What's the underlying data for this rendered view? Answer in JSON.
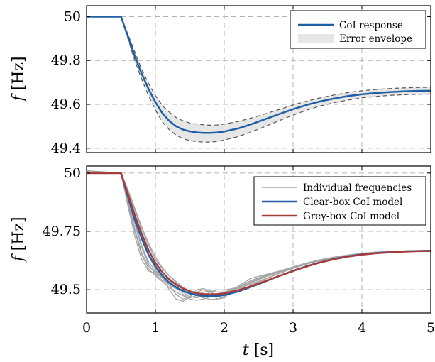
{
  "chart_data": [
    {
      "type": "line",
      "panel": "top",
      "xlim": [
        0,
        5
      ],
      "ylim": [
        49.38,
        50.05
      ],
      "xticks": [
        0,
        1,
        2,
        3,
        4,
        5
      ],
      "yticks": [
        49.4,
        49.6,
        49.8,
        50
      ],
      "ytick_labels": [
        "49.4",
        "49.6",
        "49.8",
        "50"
      ],
      "ylabel_var": "f",
      "ylabel_unit": "[Hz]",
      "grid": true,
      "legend": "top-right",
      "series": [
        {
          "name": "CoI response",
          "color": "#1f5fa6",
          "x": [
            0,
            0.5,
            0.6,
            0.7,
            0.8,
            0.9,
            1.0,
            1.1,
            1.2,
            1.3,
            1.4,
            1.5,
            1.6,
            1.7,
            1.8,
            1.9,
            2.0,
            2.2,
            2.4,
            2.6,
            2.8,
            3.0,
            3.2,
            3.4,
            3.6,
            3.8,
            4.0,
            4.2,
            4.4,
            4.6,
            4.8,
            5.0
          ],
          "y": [
            50.0,
            50.0,
            49.91,
            49.82,
            49.74,
            49.67,
            49.61,
            49.56,
            49.525,
            49.5,
            49.485,
            49.477,
            49.472,
            49.47,
            49.47,
            49.472,
            49.476,
            49.49,
            49.51,
            49.533,
            49.556,
            49.578,
            49.598,
            49.614,
            49.627,
            49.638,
            49.646,
            49.652,
            49.656,
            49.659,
            49.661,
            49.662
          ]
        },
        {
          "name": "Error envelope",
          "color": "#e6e6e6",
          "x": [
            0.5,
            0.6,
            0.7,
            0.8,
            0.9,
            1.0,
            1.1,
            1.2,
            1.3,
            1.4,
            1.5,
            1.6,
            1.7,
            1.8,
            1.9,
            2.0,
            2.2,
            2.4,
            2.6,
            2.8,
            3.0,
            3.2,
            3.4,
            3.6,
            3.8,
            4.0,
            4.2,
            4.4,
            4.6,
            4.8,
            5.0
          ],
          "upper": [
            50.0,
            49.92,
            49.84,
            49.76,
            49.695,
            49.64,
            49.595,
            49.565,
            49.54,
            49.525,
            49.515,
            49.51,
            49.507,
            49.505,
            49.506,
            49.51,
            49.522,
            49.538,
            49.557,
            49.577,
            49.597,
            49.615,
            49.63,
            49.643,
            49.654,
            49.662,
            49.668,
            49.672,
            49.675,
            49.677,
            49.678
          ],
          "lower": [
            50.0,
            49.9,
            49.8,
            49.715,
            49.64,
            49.575,
            49.52,
            49.485,
            49.46,
            49.443,
            49.435,
            49.43,
            49.428,
            49.428,
            49.431,
            49.437,
            49.453,
            49.475,
            49.5,
            49.526,
            49.551,
            49.574,
            49.593,
            49.608,
            49.62,
            49.63,
            49.636,
            49.641,
            49.644,
            49.646,
            49.647
          ]
        }
      ]
    },
    {
      "type": "line",
      "panel": "bottom",
      "xlim": [
        0,
        5
      ],
      "ylim": [
        49.4,
        50.03
      ],
      "xticks": [
        0,
        1,
        2,
        3,
        4,
        5
      ],
      "xtick_labels": [
        "0",
        "1",
        "2",
        "3",
        "4",
        "5"
      ],
      "yticks": [
        49.5,
        49.75,
        50
      ],
      "ytick_labels": [
        "49.5",
        "49.75",
        "50"
      ],
      "ylabel_var": "f",
      "ylabel_unit": "[Hz]",
      "xlabel_var": "t",
      "xlabel_unit": "[s]",
      "grid": true,
      "legend": "top-right",
      "individual_x": [
        0,
        0.5,
        0.6,
        0.7,
        0.8,
        0.9,
        1.0,
        1.1,
        1.2,
        1.3,
        1.4,
        1.5,
        1.6,
        1.7,
        1.8,
        1.9,
        2.0,
        2.2,
        2.4,
        2.6,
        2.8,
        3.0,
        3.2,
        3.4,
        3.6,
        3.8,
        4.0,
        4.2,
        4.4,
        4.6,
        4.8,
        5.0
      ],
      "individual_series": [
        [
          50.01,
          50.0,
          49.92,
          49.84,
          49.76,
          49.69,
          49.63,
          49.59,
          49.56,
          49.535,
          49.51,
          49.495,
          49.485,
          49.482,
          49.48,
          49.483,
          49.488,
          49.505,
          49.525,
          49.548,
          49.57,
          49.592,
          49.61,
          49.626,
          49.638,
          49.648,
          49.655,
          49.66,
          49.663,
          49.665,
          49.666,
          49.667
        ],
        [
          50.005,
          50.0,
          49.9,
          49.79,
          49.69,
          49.62,
          49.58,
          49.56,
          49.54,
          49.51,
          49.48,
          49.465,
          49.475,
          49.49,
          49.495,
          49.49,
          49.49,
          49.505,
          49.53,
          49.555,
          49.575,
          49.594,
          49.612,
          49.627,
          49.638,
          49.647,
          49.655,
          49.66,
          49.664,
          49.666,
          49.667,
          49.668
        ],
        [
          50.0,
          50.0,
          49.88,
          49.76,
          49.66,
          49.6,
          49.575,
          49.555,
          49.52,
          49.48,
          49.46,
          49.47,
          49.49,
          49.5,
          49.49,
          49.475,
          49.48,
          49.51,
          49.54,
          49.56,
          49.578,
          49.596,
          49.614,
          49.628,
          49.64,
          49.648,
          49.656,
          49.661,
          49.664,
          49.666,
          49.667,
          49.668
        ],
        [
          50.0,
          50.0,
          49.86,
          49.73,
          49.63,
          49.58,
          49.57,
          49.55,
          49.5,
          49.46,
          49.45,
          49.47,
          49.5,
          49.505,
          49.49,
          49.46,
          49.465,
          49.515,
          49.55,
          49.565,
          49.58,
          49.598,
          49.615,
          49.629,
          49.64,
          49.649,
          49.656,
          49.661,
          49.664,
          49.666,
          49.667,
          49.668
        ],
        [
          50.01,
          50.0,
          49.93,
          49.85,
          49.77,
          49.7,
          49.64,
          49.595,
          49.56,
          49.53,
          49.505,
          49.49,
          49.48,
          49.478,
          49.476,
          49.475,
          49.478,
          49.495,
          49.52,
          49.545,
          49.57,
          49.592,
          49.61,
          49.625,
          49.637,
          49.647,
          49.654,
          49.659,
          49.663,
          49.665,
          49.666,
          49.667
        ],
        [
          50.0,
          50.0,
          49.89,
          49.78,
          49.68,
          49.61,
          49.565,
          49.54,
          49.53,
          49.515,
          49.49,
          49.47,
          49.465,
          49.475,
          49.49,
          49.5,
          49.498,
          49.51,
          49.535,
          49.558,
          49.578,
          49.596,
          49.613,
          49.627,
          49.639,
          49.648,
          49.655,
          49.66,
          49.664,
          49.666,
          49.667,
          49.668
        ],
        [
          50.0,
          50.0,
          49.87,
          49.75,
          49.65,
          49.59,
          49.56,
          49.535,
          49.51,
          49.49,
          49.475,
          49.46,
          49.455,
          49.46,
          49.47,
          49.48,
          49.49,
          49.512,
          49.54,
          49.562,
          49.58,
          49.597,
          49.614,
          49.628,
          49.639,
          49.648,
          49.655,
          49.66,
          49.664,
          49.666,
          49.667,
          49.668
        ],
        [
          50.0,
          50.0,
          49.91,
          49.81,
          49.72,
          49.645,
          49.59,
          49.55,
          49.52,
          49.505,
          49.495,
          49.485,
          49.475,
          49.465,
          49.458,
          49.46,
          49.47,
          49.5,
          49.53,
          49.556,
          49.578,
          49.597,
          49.613,
          49.627,
          49.638,
          49.647,
          49.655,
          49.66,
          49.663,
          49.665,
          49.666,
          49.667
        ]
      ],
      "series": [
        {
          "name": "Individual frequencies",
          "color": "#a6a6a6"
        },
        {
          "name": "Clear-box CoI model",
          "color": "#1f5fa6",
          "x": [
            0,
            0.5,
            0.6,
            0.7,
            0.8,
            0.9,
            1.0,
            1.1,
            1.2,
            1.3,
            1.4,
            1.5,
            1.6,
            1.7,
            1.8,
            1.9,
            2.0,
            2.2,
            2.4,
            2.6,
            2.8,
            3.0,
            3.2,
            3.4,
            3.6,
            3.8,
            4.0,
            4.2,
            4.4,
            4.6,
            4.8,
            5.0
          ],
          "y": [
            50.0,
            50.0,
            49.9,
            49.8,
            49.72,
            49.65,
            49.6,
            49.56,
            49.53,
            49.51,
            49.495,
            49.484,
            49.477,
            49.473,
            49.472,
            49.473,
            49.477,
            49.492,
            49.513,
            49.536,
            49.559,
            49.581,
            49.601,
            49.618,
            49.632,
            49.643,
            49.651,
            49.657,
            49.661,
            49.664,
            49.666,
            49.667
          ]
        },
        {
          "name": "Grey-box CoI model",
          "color": "#a83a3a",
          "x": [
            0,
            0.5,
            0.6,
            0.7,
            0.8,
            0.9,
            1.0,
            1.1,
            1.2,
            1.3,
            1.4,
            1.5,
            1.6,
            1.7,
            1.8,
            1.9,
            2.0,
            2.2,
            2.4,
            2.6,
            2.8,
            3.0,
            3.2,
            3.4,
            3.6,
            3.8,
            4.0,
            4.2,
            4.4,
            4.6,
            4.8,
            5.0
          ],
          "y": [
            50.0,
            50.0,
            49.91,
            49.82,
            49.74,
            49.67,
            49.615,
            49.575,
            49.545,
            49.522,
            49.505,
            49.493,
            49.485,
            49.481,
            49.48,
            49.481,
            49.484,
            49.497,
            49.516,
            49.537,
            49.559,
            49.58,
            49.6,
            49.617,
            49.631,
            49.642,
            49.65,
            49.656,
            49.66,
            49.663,
            49.665,
            49.666
          ]
        }
      ]
    }
  ]
}
